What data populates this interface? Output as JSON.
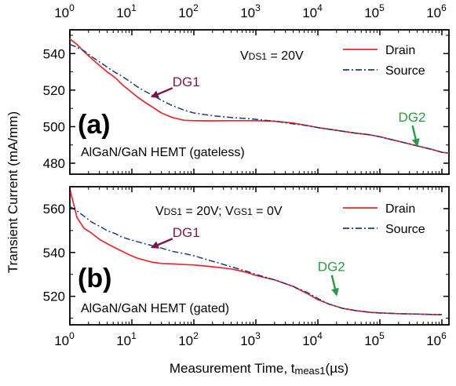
{
  "colors": {
    "drain": "#e8282b",
    "source": "#1f3a7a",
    "dg1": "#7a1845",
    "dg2": "#2a9a44",
    "axis": "#000000"
  },
  "chart_data": {
    "type": "line",
    "x_axis": {
      "label": "Measurement Time, t",
      "label_sub": "meas1",
      "label_unit": "(µs)",
      "scale": "log",
      "xlim": [
        1,
        1300000
      ],
      "ticks_base": "10",
      "tick_exponents": [
        "0",
        "1",
        "2",
        "3",
        "4",
        "5",
        "6"
      ],
      "tick_values": [
        1,
        10,
        100,
        1000,
        10000,
        100000,
        1000000
      ]
    },
    "y_axis_label": "Transient Current (mA/mm)",
    "panels": [
      {
        "panel_label": "(b)",
        "device": "AlGaN/GaN HEMT (gated)",
        "condition": {
          "v1": "V",
          "v1_sub": "DS1",
          "v1_val": " = 20V; ",
          "v2": "V",
          "v2_sub": "GS1",
          "v2_val": " = 0V"
        },
        "ylim": [
          507,
          570
        ],
        "yticks": [
          520,
          540,
          560
        ],
        "ytick_labels": [
          "520",
          "540",
          "560"
        ],
        "legend": [
          "Drain",
          "Source"
        ],
        "annotations": [
          {
            "text": "DG1",
            "color_key": "dg1",
            "tip": [
              20,
              542
            ]
          },
          {
            "text": "DG2",
            "color_key": "dg2",
            "tip": [
              20000,
              520
            ]
          }
        ],
        "series": [
          {
            "name": "Drain",
            "style": "solid",
            "color_key": "drain",
            "x": [
              1,
              1.3,
              1.7,
              2.2,
              3,
              4,
              5.5,
              7,
              9,
              12,
              16,
              22,
              30,
              45,
              70,
              100,
              200,
              400,
              700,
              1000,
              2000,
              4000,
              7000,
              10000,
              15000,
              25000,
              40000,
              70000,
              100000,
              200000,
              400000,
              700000,
              1000000
            ],
            "values": [
              569,
              556,
              551,
              549,
              546,
              544,
              542,
              540.5,
              539,
              537.5,
              536.5,
              535.5,
              535,
              534.8,
              534.5,
              534.3,
              533.5,
              532.5,
              531,
              529.5,
              527.5,
              524.5,
              521,
              518.5,
              516.5,
              514.5,
              513.5,
              512.7,
              512.4,
              512.1,
              511.9,
              511.7,
              511.6
            ]
          },
          {
            "name": "Source",
            "style": "dashdot",
            "color_key": "source",
            "x": [
              1,
              1.3,
              1.7,
              2.2,
              3,
              4,
              5.5,
              7,
              9,
              12,
              16,
              22,
              30,
              45,
              70,
              100,
              200,
              400,
              700,
              1000,
              2000,
              4000,
              7000,
              10000,
              15000,
              25000,
              40000,
              70000,
              100000,
              200000,
              400000,
              700000,
              1000000
            ],
            "values": [
              561,
              559,
              556.5,
              554,
              552,
              550,
              548.5,
              547,
              546,
              545,
              544,
              543,
              542,
              540.5,
              539.5,
              538.5,
              536,
              533.5,
              531.5,
              530,
              527.5,
              524.5,
              521.5,
              519,
              516.5,
              514.5,
              513.5,
              512.7,
              512.4,
              512.1,
              511.9,
              511.7,
              511.6
            ]
          }
        ]
      },
      {
        "panel_label": "(a)",
        "device": "AlGaN/GaN HEMT (gateless)",
        "condition": {
          "v1": "V",
          "v1_sub": "DS1",
          "v1_val": " = 20V",
          "v2": "",
          "v2_sub": "",
          "v2_val": ""
        },
        "ylim": [
          474,
          553
        ],
        "yticks": [
          480,
          500,
          520,
          540
        ],
        "ytick_labels": [
          "480",
          "500",
          "520",
          "540"
        ],
        "legend": [
          "Drain",
          "Source"
        ],
        "annotations": [
          {
            "text": "DG1",
            "color_key": "dg1",
            "tip": [
              20,
              516
            ]
          },
          {
            "text": "DG2",
            "color_key": "dg2",
            "tip": [
              400000,
              489
            ]
          }
        ],
        "series": [
          {
            "name": "Drain",
            "style": "solid",
            "color_key": "drain",
            "x": [
              1,
              1.3,
              1.7,
              2.2,
              3,
              4,
              5.5,
              7,
              9,
              12,
              16,
              22,
              30,
              45,
              70,
              100,
              200,
              400,
              700,
              1000,
              2000,
              4000,
              7000,
              10000,
              20000,
              40000,
              70000,
              100000,
              200000,
              400000,
              700000,
              1000000,
              1300000
            ],
            "values": [
              548,
              545,
              541,
              537.5,
              533.5,
              530,
              526.5,
              523,
              520,
              516.5,
              513.5,
              510.5,
              507.5,
              505,
              503.5,
              503.3,
              503.2,
              503.3,
              503.3,
              503.3,
              503,
              502,
              500.5,
              499.5,
              498,
              496.5,
              495.5,
              494.5,
              492,
              489.5,
              487.5,
              486,
              485.5
            ]
          },
          {
            "name": "Source",
            "style": "dashdot",
            "color_key": "source",
            "x": [
              1,
              1.3,
              1.7,
              2.2,
              3,
              4,
              5.5,
              7,
              9,
              12,
              16,
              22,
              30,
              45,
              70,
              100,
              200,
              400,
              700,
              1000,
              2000,
              4000,
              7000,
              10000,
              20000,
              40000,
              70000,
              100000,
              200000,
              400000,
              700000,
              1000000,
              1300000
            ],
            "values": [
              545,
              543.5,
              541.5,
              538.5,
              535.5,
              532.5,
              529.5,
              527.5,
              525,
              522,
              519.5,
              517,
              514.5,
              511.5,
              509,
              507.5,
              506,
              505,
              504.5,
              504,
              503,
              501.5,
              500.5,
              499.5,
              498,
              496.5,
              495.5,
              494.5,
              492,
              489.5,
              487.5,
              486,
              485.5
            ]
          }
        ]
      }
    ]
  }
}
